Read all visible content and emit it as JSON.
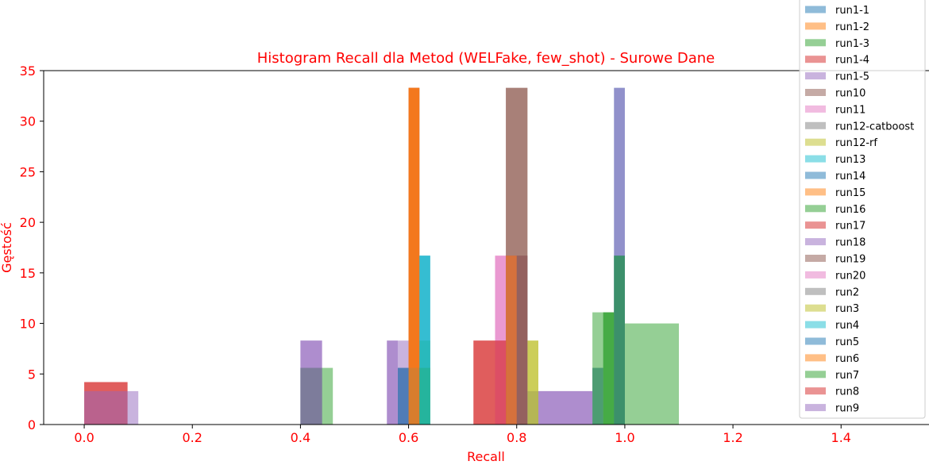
{
  "chart_data": {
    "type": "bar",
    "title": "Histogram Recall dla Metod (WELFake, few_shot) - Surowe Dane",
    "xlabel": "Recall",
    "ylabel": "Gęstość",
    "xlim": [
      -0.075,
      1.57
    ],
    "ylim": [
      0,
      35
    ],
    "xticks": [
      "0.0",
      "0.2",
      "0.4",
      "0.6",
      "0.8",
      "1.0",
      "1.2",
      "1.4"
    ],
    "yticks": [
      "0",
      "5",
      "10",
      "15",
      "20",
      "25",
      "30",
      "35"
    ],
    "grid": false,
    "legend_position": "upper-right",
    "series": [
      {
        "name": "run1-1",
        "color": "#1f77b4",
        "bins": [
          [
            0.6,
            0.62,
            33.3
          ],
          [
            0.62,
            0.64,
            16.7
          ],
          [
            0.8,
            0.82,
            16.7
          ],
          [
            0.98,
            1.0,
            33.3
          ]
        ]
      },
      {
        "name": "run1-2",
        "color": "#ff7f0e",
        "bins": [
          [
            0.6,
            0.62,
            33.3
          ],
          [
            0.78,
            0.8,
            16.7
          ],
          [
            0.8,
            0.82,
            16.7
          ]
        ]
      },
      {
        "name": "run1-3",
        "color": "#2ca02c",
        "bins": [
          [
            0.62,
            0.64,
            8.3
          ],
          [
            0.96,
            0.98,
            11.1
          ],
          [
            0.98,
            1.0,
            16.7
          ]
        ]
      },
      {
        "name": "run1-4",
        "color": "#d62728",
        "bins": [
          [
            0.6,
            0.62,
            33.3
          ],
          [
            0.78,
            0.8,
            16.7
          ]
        ]
      },
      {
        "name": "run1-5",
        "color": "#9467bd",
        "bins": [
          [
            0.4,
            0.44,
            8.3
          ],
          [
            0.8,
            0.82,
            16.7
          ],
          [
            0.98,
            1.0,
            33.3
          ]
        ]
      },
      {
        "name": "run10",
        "color": "#8c564b",
        "bins": [
          [
            0.78,
            0.82,
            33.3
          ]
        ]
      },
      {
        "name": "run11",
        "color": "#e377c2",
        "bins": [
          [
            0.76,
            0.78,
            16.7
          ],
          [
            0.78,
            0.8,
            16.7
          ]
        ]
      },
      {
        "name": "run12-catboost",
        "color": "#7f7f7f",
        "bins": [
          [
            0.4,
            0.44,
            5.6
          ],
          [
            0.58,
            0.62,
            5.6
          ],
          [
            0.94,
            0.96,
            5.6
          ]
        ]
      },
      {
        "name": "run12-rf",
        "color": "#bcbd22",
        "bins": [
          [
            0.82,
            0.84,
            8.3
          ]
        ]
      },
      {
        "name": "run13",
        "color": "#17becf",
        "bins": [
          [
            0.62,
            0.64,
            16.7
          ]
        ]
      },
      {
        "name": "run14",
        "color": "#1f77b4",
        "bins": [
          [
            0.4,
            0.44,
            5.6
          ],
          [
            0.58,
            0.62,
            5.6
          ],
          [
            0.94,
            0.96,
            5.6
          ]
        ]
      },
      {
        "name": "run15",
        "color": "#ff7f0e",
        "bins": [
          [
            0.6,
            0.62,
            33.3
          ]
        ]
      },
      {
        "name": "run16",
        "color": "#2ca02c",
        "bins": [
          [
            0.44,
            0.46,
            5.6
          ],
          [
            0.62,
            0.64,
            5.6
          ],
          [
            0.94,
            0.98,
            11.1
          ]
        ]
      },
      {
        "name": "run17",
        "color": "#d62728",
        "bins": [
          [
            0.0,
            0.08,
            4.2
          ],
          [
            0.72,
            0.78,
            8.3
          ]
        ]
      },
      {
        "name": "run18",
        "color": "#9467bd",
        "bins": [
          [
            0.4,
            0.44,
            8.3
          ],
          [
            0.56,
            0.6,
            8.3
          ],
          [
            0.84,
            0.94,
            3.3
          ]
        ]
      },
      {
        "name": "run19",
        "color": "#8c564b",
        "bins": [
          [
            0.78,
            0.82,
            33.3
          ]
        ]
      },
      {
        "name": "run20",
        "color": "#e377c2",
        "bins": [
          [
            0.76,
            0.78,
            16.7
          ]
        ]
      },
      {
        "name": "run2",
        "color": "#7f7f7f",
        "bins": [
          [
            0.4,
            0.44,
            5.6
          ],
          [
            0.82,
            0.84,
            3.3
          ]
        ]
      },
      {
        "name": "run3",
        "color": "#bcbd22",
        "bins": [
          [
            0.82,
            0.84,
            8.3
          ]
        ]
      },
      {
        "name": "run4",
        "color": "#17becf",
        "bins": [
          [
            0.62,
            0.64,
            16.7
          ]
        ]
      },
      {
        "name": "run5",
        "color": "#1f77b4",
        "bins": [
          [
            0.58,
            0.6,
            5.6
          ],
          [
            0.98,
            1.0,
            16.7
          ]
        ]
      },
      {
        "name": "run6",
        "color": "#ff7f0e",
        "bins": [
          [
            0.6,
            0.62,
            33.3
          ],
          [
            0.78,
            0.8,
            16.7
          ]
        ]
      },
      {
        "name": "run7",
        "color": "#2ca02c",
        "bins": [
          [
            0.96,
            0.98,
            11.1
          ],
          [
            0.98,
            1.0,
            16.7
          ],
          [
            1.0,
            1.1,
            10.0
          ]
        ]
      },
      {
        "name": "run8",
        "color": "#d62728",
        "bins": [
          [
            0.0,
            0.08,
            4.2
          ],
          [
            0.72,
            0.78,
            8.3
          ]
        ]
      },
      {
        "name": "run9",
        "color": "#9467bd",
        "bins": [
          [
            0.0,
            0.1,
            3.3
          ],
          [
            0.56,
            0.58,
            8.3
          ],
          [
            0.84,
            0.94,
            3.3
          ]
        ]
      }
    ]
  }
}
